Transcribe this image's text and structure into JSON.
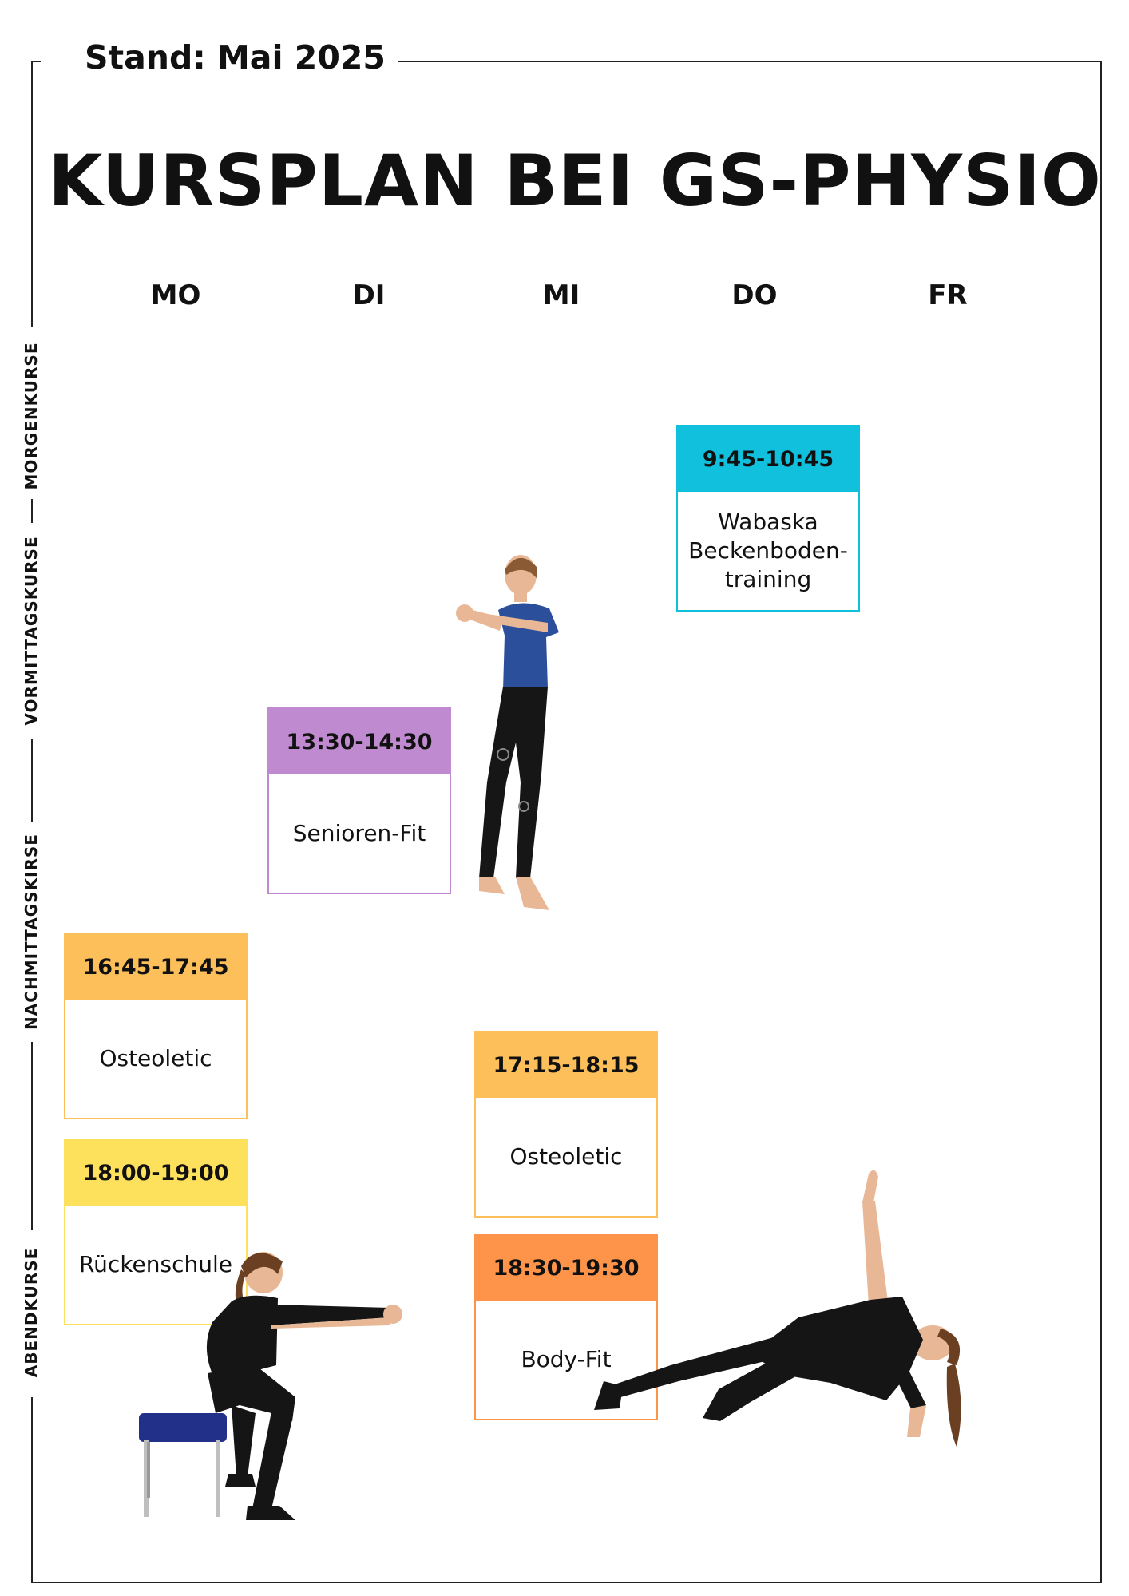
{
  "header": {
    "stand": "Stand: Mai 2025",
    "title": "KURSPLAN BEI GS-PHYSIO"
  },
  "days": [
    "MO",
    "DI",
    "MI",
    "DO",
    "FR"
  ],
  "sections": [
    "MORGENKURSE",
    "VORMITTAGSKURSE",
    "NACHMITTAGSKIRSE",
    "ABENDKURSE"
  ],
  "courses": [
    {
      "day": "DO",
      "time": "9:45-10:45",
      "name": "Wabaska Beckenboden-training",
      "color": "#10c0dd"
    },
    {
      "day": "DI",
      "time": "13:30-14:30",
      "name": "Senioren-Fit",
      "color": "#c08ad0"
    },
    {
      "day": "MO",
      "time": "16:45-17:45",
      "name": "Osteoletic",
      "color": "#fdbf5a"
    },
    {
      "day": "MO",
      "time": "18:00-19:00",
      "name": "Rückenschule",
      "color": "#fde05c"
    },
    {
      "day": "MI",
      "time": "17:15-18:15",
      "name": "Osteoletic",
      "color": "#fdbf5a"
    },
    {
      "day": "MI",
      "time": "18:30-19:30",
      "name": "Body-Fit",
      "color": "#fd944a"
    }
  ]
}
